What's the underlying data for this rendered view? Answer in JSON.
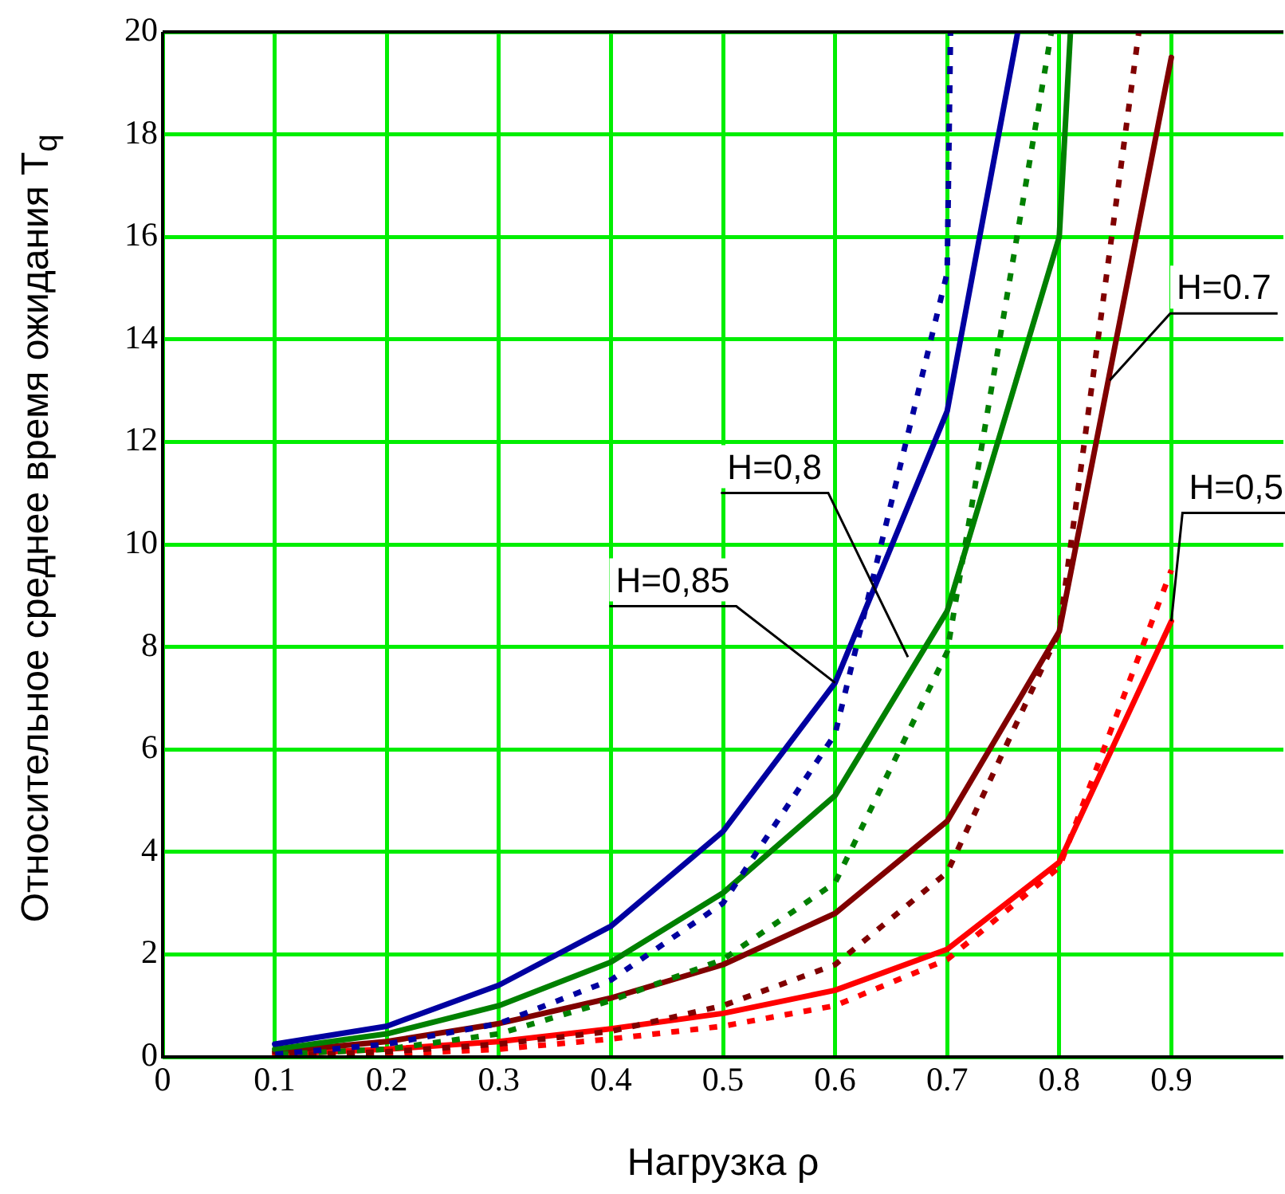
{
  "chart_data": {
    "type": "line",
    "xlabel": "Нагрузка ρ",
    "ylabel": "Относительное среднее время ожидания T$_{q}$",
    "xlim": [
      0,
      1
    ],
    "ylim": [
      0,
      20
    ],
    "xticks": [
      0,
      0.1,
      0.2,
      0.3,
      0.4,
      0.5,
      0.6,
      0.7,
      0.8,
      0.9
    ],
    "yticks": [
      0,
      2,
      4,
      6,
      8,
      10,
      12,
      14,
      16,
      18,
      20
    ],
    "grid": true,
    "legend": false,
    "marker": "none",
    "series": [
      {
        "color": "#0000a0",
        "line_style": "solid",
        "x": [
          0.1,
          0.2,
          0.3,
          0.4,
          0.5,
          0.6,
          0.7,
          0.763
        ],
        "values": [
          0.25,
          0.6,
          1.4,
          2.55,
          4.4,
          7.3,
          12.6,
          20
        ]
      },
      {
        "color": "#0000a0",
        "line_style": "dotted",
        "x": [
          0.1,
          0.2,
          0.3,
          0.4,
          0.5,
          0.6,
          0.7,
          0.703
        ],
        "values": [
          0.05,
          0.25,
          0.65,
          1.5,
          3.0,
          6.3,
          15.3,
          20
        ]
      },
      {
        "color": "#008000",
        "line_style": "solid",
        "x": [
          0.1,
          0.2,
          0.3,
          0.4,
          0.5,
          0.6,
          0.7,
          0.8,
          0.81
        ],
        "values": [
          0.15,
          0.45,
          1.0,
          1.85,
          3.2,
          5.1,
          8.7,
          16.0,
          20
        ]
      },
      {
        "color": "#008000",
        "line_style": "dotted",
        "x": [
          0.1,
          0.2,
          0.3,
          0.4,
          0.5,
          0.6,
          0.7,
          0.793
        ],
        "values": [
          0.05,
          0.15,
          0.45,
          1.1,
          1.9,
          3.4,
          7.9,
          20
        ]
      },
      {
        "color": "#800000",
        "line_style": "solid",
        "x": [
          0.1,
          0.2,
          0.3,
          0.4,
          0.5,
          0.6,
          0.7,
          0.8,
          0.9
        ],
        "values": [
          0.1,
          0.3,
          0.65,
          1.15,
          1.8,
          2.8,
          4.6,
          8.3,
          19.5
        ]
      },
      {
        "color": "#800000",
        "line_style": "dotted",
        "x": [
          0.1,
          0.2,
          0.3,
          0.4,
          0.5,
          0.6,
          0.7,
          0.8,
          0.871
        ],
        "values": [
          0.03,
          0.1,
          0.25,
          0.5,
          1.0,
          1.8,
          3.6,
          8.3,
          20
        ]
      },
      {
        "color": "#ff0000",
        "line_style": "solid",
        "x": [
          0.1,
          0.2,
          0.3,
          0.4,
          0.5,
          0.6,
          0.7,
          0.8,
          0.9
        ],
        "values": [
          0.05,
          0.15,
          0.3,
          0.55,
          0.85,
          1.3,
          2.1,
          3.8,
          8.5
        ]
      },
      {
        "color": "#ff0000",
        "line_style": "dotted",
        "x": [
          0.1,
          0.2,
          0.3,
          0.4,
          0.5,
          0.6,
          0.7,
          0.8,
          0.9
        ],
        "values": [
          0.02,
          0.05,
          0.15,
          0.35,
          0.6,
          1.0,
          1.9,
          3.7,
          9.5
        ]
      }
    ],
    "annotations": [
      {
        "text": "H=0,85",
        "x": 0.6,
        "y": 7.3
      },
      {
        "text": "H=0,8",
        "x": 0.665,
        "y": 7.8
      },
      {
        "text": "H=0.7",
        "x": 0.845,
        "y": 13.2
      },
      {
        "text": "H=0,5",
        "x": 0.9,
        "y": 8.5
      }
    ]
  }
}
